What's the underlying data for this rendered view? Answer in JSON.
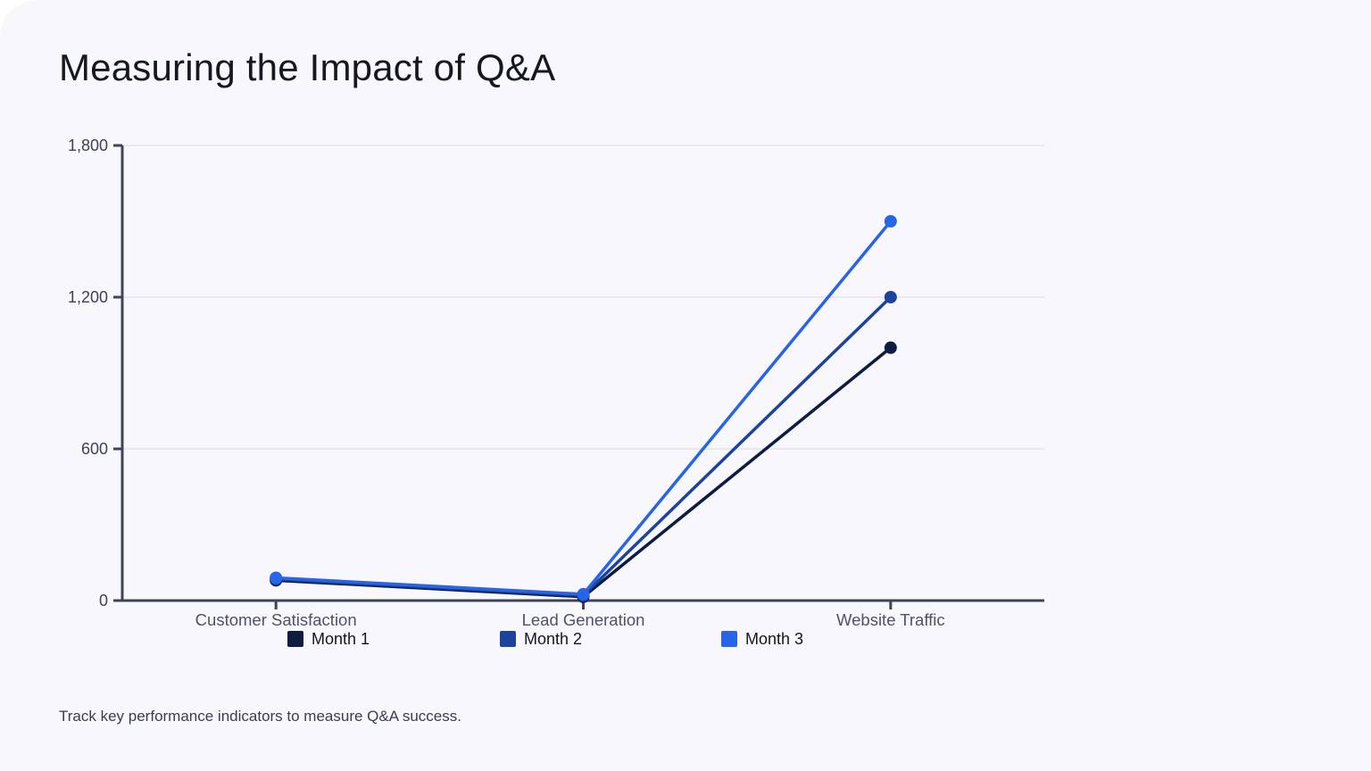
{
  "slide": {
    "title": "Measuring the Impact of Q&A",
    "caption": "Track key performance indicators to measure Q&A success."
  },
  "chart_data": {
    "type": "line",
    "title": "Measuring the Impact of Q&A",
    "categories": [
      "Customer Satisfaction",
      "Lead Generation",
      "Website Traffic"
    ],
    "series": [
      {
        "name": "Month 1",
        "color": "#0d1d42",
        "values": [
          80,
          15,
          1000
        ]
      },
      {
        "name": "Month 2",
        "color": "#1c449c",
        "values": [
          85,
          20,
          1200
        ]
      },
      {
        "name": "Month 3",
        "color": "#2764e8",
        "values": [
          90,
          25,
          1500
        ]
      }
    ],
    "ylim": [
      0,
      1800
    ],
    "yticks": [
      0,
      600,
      1200,
      1800
    ],
    "xlabel": "",
    "ylabel": "",
    "grid": "horizontal",
    "legend_position": "bottom",
    "theme": {
      "background": "#f8f8fc",
      "page_background": "#ffffff",
      "axis_color": "#3f4357",
      "gridline_color": "#e2e2e8",
      "ytick_color": "#3d4155",
      "xtick_color": "#4d516a",
      "title_color": "#16181f",
      "caption_color": "#3a3d50",
      "legend_text_color": "#14161e"
    }
  }
}
